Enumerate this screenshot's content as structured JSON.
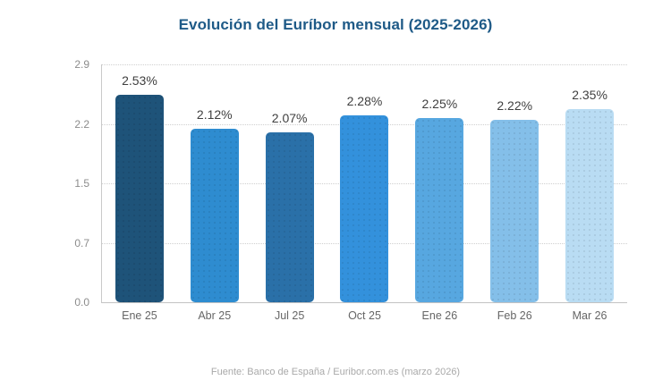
{
  "chart_data": {
    "type": "bar",
    "title": "Evolución del Euríbor mensual (2025-2026)",
    "categories": [
      "Ene 25",
      "Abr 25",
      "Jul 25",
      "Oct 25",
      "Ene 26",
      "Feb 26",
      "Mar 26"
    ],
    "values": [
      2.53,
      2.12,
      2.07,
      2.28,
      2.25,
      2.22,
      2.35
    ],
    "value_labels": [
      "2.53%",
      "2.12%",
      "2.07%",
      "2.28%",
      "2.25%",
      "2.22%",
      "2.35%"
    ],
    "bar_colors": [
      "#1e5379",
      "#2e8cd0",
      "#2a70a8",
      "#3391dc",
      "#57a7e0",
      "#84bfe9",
      "#b9dcf3"
    ],
    "ytick_labels": [
      "2.9",
      "2.2",
      "1.5",
      "0.7",
      "0.0"
    ],
    "ylim": [
      0,
      2.9
    ],
    "xlabel": "",
    "ylabel": "",
    "grid": "horizontal-dotted",
    "legend_position": "none",
    "source": "Fuente: Banco de España / Euribor.com.es (marzo 2026)"
  },
  "colors": {
    "title": "#1e5a87",
    "axis_line": "#c9c9c9",
    "gridline": "#cfcfcf",
    "ytick_text": "#8c8c8c",
    "xtick_text": "#666666",
    "value_text": "#3f3f3f",
    "source_text": "#a9a9a9",
    "background": "#ffffff"
  }
}
